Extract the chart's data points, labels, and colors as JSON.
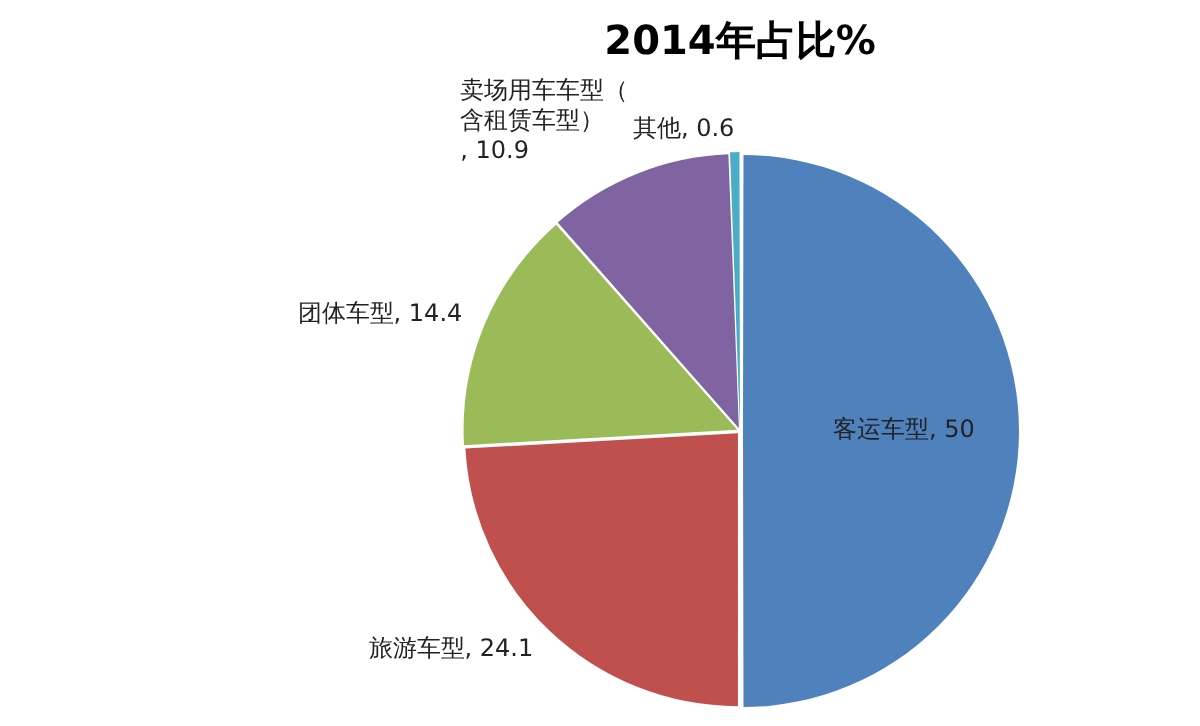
{
  "chart_data": {
    "type": "pie",
    "title": "2014年占比%",
    "categories": [
      "客运车型",
      "旅游车型",
      "团体车型",
      "卖场用车车型（含租赁车型）",
      "其他"
    ],
    "values": [
      50,
      24.1,
      14.4,
      10.9,
      0.6
    ],
    "colors": [
      "#4f81bd",
      "#c0504d",
      "#9bbb59",
      "#8064a2",
      "#4bacc6"
    ],
    "value_labels": [
      ", 50",
      ", 24.1",
      ", 14.4",
      ", 10.9",
      ", 0.6"
    ],
    "legend": false
  }
}
